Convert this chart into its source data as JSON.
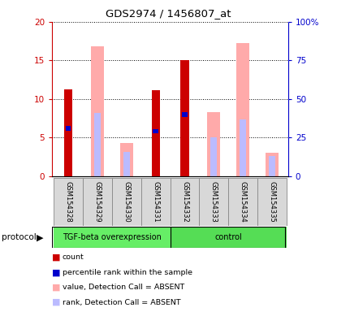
{
  "title": "GDS2974 / 1456807_at",
  "samples": [
    "GSM154328",
    "GSM154329",
    "GSM154330",
    "GSM154331",
    "GSM154332",
    "GSM154333",
    "GSM154334",
    "GSM154335"
  ],
  "count_values": [
    11.3,
    0,
    0,
    11.2,
    15.0,
    0,
    0,
    0
  ],
  "percentile_values": [
    6.2,
    0,
    0,
    5.8,
    8.0,
    0,
    0,
    0
  ],
  "value_absent": [
    0,
    16.8,
    4.3,
    0,
    0,
    8.3,
    17.2,
    3.0
  ],
  "rank_absent": [
    0,
    8.2,
    3.2,
    0,
    0,
    5.0,
    7.4,
    2.6
  ],
  "ylim_left": [
    0,
    20
  ],
  "ylim_right": [
    0,
    100
  ],
  "yticks_left": [
    0,
    5,
    10,
    15,
    20
  ],
  "yticks_right": [
    0,
    25,
    50,
    75,
    100
  ],
  "ytick_labels_left": [
    "0",
    "5",
    "10",
    "15",
    "20"
  ],
  "ytick_labels_right": [
    "0",
    "25",
    "50",
    "75",
    "100%"
  ],
  "color_count": "#cc0000",
  "color_percentile": "#0000cc",
  "color_value_absent": "#ffaaaa",
  "color_rank_absent": "#bbbbff",
  "protocol_groups": [
    {
      "label": "TGF-beta overexpression",
      "start": 0,
      "end": 3,
      "color": "#66ee66"
    },
    {
      "label": "control",
      "start": 4,
      "end": 7,
      "color": "#55dd55"
    }
  ],
  "legend_items": [
    {
      "color": "#cc0000",
      "label": "count"
    },
    {
      "color": "#0000cc",
      "label": "percentile rank within the sample"
    },
    {
      "color": "#ffaaaa",
      "label": "value, Detection Call = ABSENT"
    },
    {
      "color": "#bbbbff",
      "label": "rank, Detection Call = ABSENT"
    }
  ]
}
